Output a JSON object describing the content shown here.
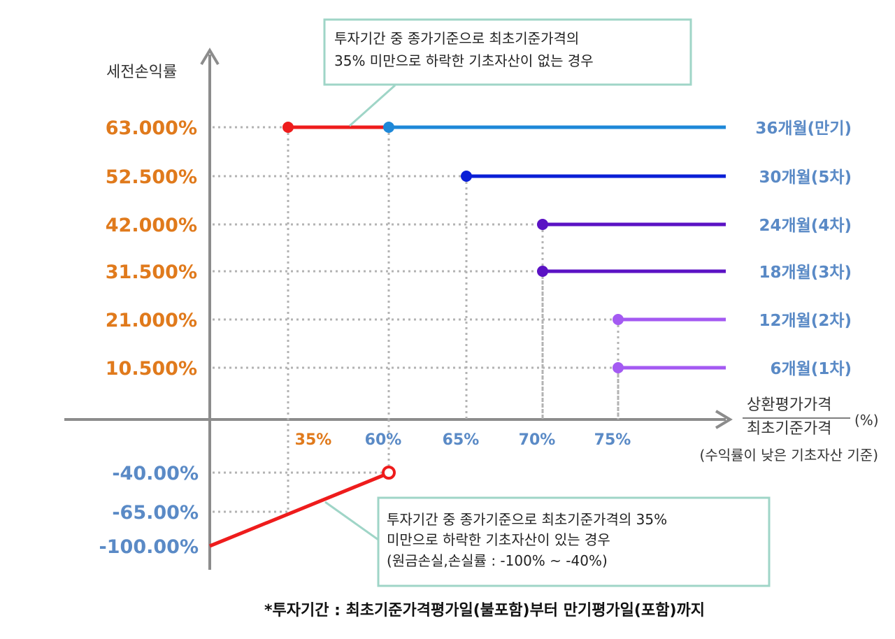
{
  "chart_data": {
    "type": "line",
    "y_title": "세전손익률",
    "x_title_numerator": "상환평가가격",
    "x_title_denominator": "최초기준가격",
    "x_unit": "(%)",
    "x_subtitle": "(수익률이 낮은 기초자산 기준)",
    "x_ticks": [
      {
        "label": "35%",
        "value": 35,
        "color": "#e07a1c"
      },
      {
        "label": "60%",
        "value": 60,
        "color": "#5a8ac6"
      },
      {
        "label": "65%",
        "value": 65,
        "color": "#5a8ac6"
      },
      {
        "label": "70%",
        "value": 70,
        "color": "#5a8ac6"
      },
      {
        "label": "75%",
        "value": 75,
        "color": "#5a8ac6"
      }
    ],
    "y_ticks_positive": [
      {
        "label": "63.000%",
        "value": 63.0
      },
      {
        "label": "52.500%",
        "value": 52.5
      },
      {
        "label": "42.000%",
        "value": 42.0
      },
      {
        "label": "31.500%",
        "value": 31.5
      },
      {
        "label": "21.000%",
        "value": 21.0
      },
      {
        "label": "10.500%",
        "value": 10.5
      }
    ],
    "y_ticks_negative": [
      {
        "label": "-40.00%",
        "value": -40
      },
      {
        "label": "-65.00%",
        "value": -65
      },
      {
        "label": "-100.00%",
        "value": -100
      }
    ],
    "series": [
      {
        "name": "36개월(만기)",
        "threshold_x": 60,
        "y": 63.0,
        "color": "#1e88d8"
      },
      {
        "name": "30개월(5차)",
        "threshold_x": 65,
        "y": 52.5,
        "color": "#0a1fd6"
      },
      {
        "name": "24개월(4차)",
        "threshold_x": 70,
        "y": 42.0,
        "color": "#5b12c4"
      },
      {
        "name": "18개월(3차)",
        "threshold_x": 70,
        "y": 31.5,
        "color": "#5b12c4"
      },
      {
        "name": "12개월(2차)",
        "threshold_x": 75,
        "y": 21.0,
        "color": "#a45af2"
      },
      {
        "name": "6개월(1차)",
        "threshold_x": 75,
        "y": 10.5,
        "color": "#a45af2"
      }
    ],
    "maturity_no_knockin": {
      "from_x": 35,
      "to_x": 60,
      "y": 63.0,
      "color": "#ee1c1c"
    },
    "loss_line": {
      "points": [
        [
          0,
          -100
        ],
        [
          60,
          -40
        ]
      ],
      "color": "#ee1c1c",
      "open_end_x": 60
    },
    "notes": {
      "top_line1": "투자기간 중 종가기준으로 최초기준가격의",
      "top_line2": "35% 미만으로 하락한 기초자산이 없는 경우",
      "bottom_line1": "투자기간 중 종가기준으로 최초기준가격의 35%",
      "bottom_line2": "미만으로 하락한 기초자산이 있는 경우",
      "bottom_line3": "(원금손실,손실률 : -100% ~ -40%)"
    },
    "footnote": "*투자기간 : 최초기준가격평가일(불포함)부터 만기평가일(포함)까지"
  }
}
